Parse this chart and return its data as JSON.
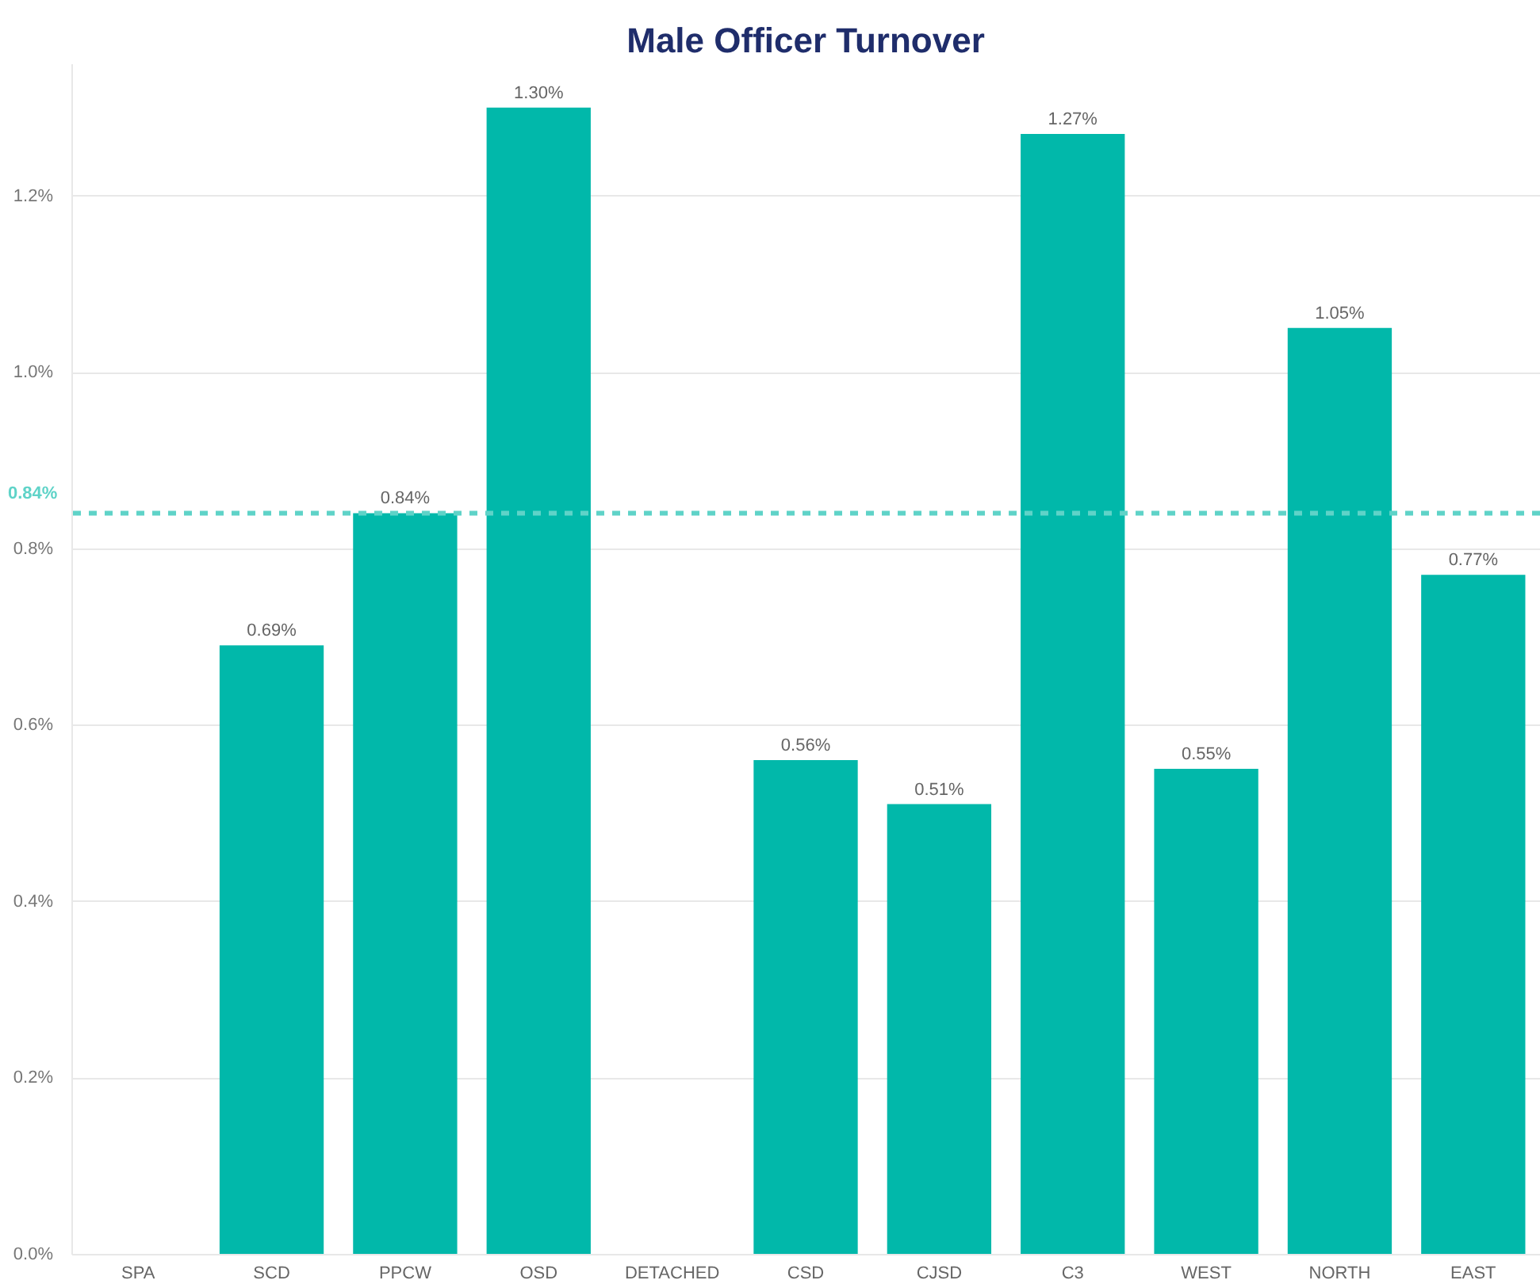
{
  "chart_data": {
    "type": "bar",
    "title": "Male Officer Turnover",
    "categories": [
      "SPA",
      "SCD",
      "PPCW",
      "OSD",
      "DETACHED",
      "CSD",
      "CJSD",
      "C3",
      "WEST",
      "NORTH",
      "EAST"
    ],
    "values": [
      null,
      0.69,
      0.84,
      1.3,
      null,
      0.56,
      0.51,
      1.27,
      0.55,
      1.05,
      0.77
    ],
    "value_labels": [
      null,
      "0.69%",
      "0.84%",
      "1.30%",
      null,
      "0.56%",
      "0.51%",
      "1.27%",
      "0.55%",
      "1.05%",
      "0.77%"
    ],
    "color": "#01b8aa",
    "ylim": [
      0,
      1.35
    ],
    "yticks": [
      {
        "value": 0,
        "label": "0.0%"
      },
      {
        "value": 0.2,
        "label": "0.2%"
      },
      {
        "value": 0.4,
        "label": "0.4%"
      },
      {
        "value": 0.6,
        "label": "0.6%"
      },
      {
        "value": 0.8,
        "label": "0.8%"
      },
      {
        "value": 1.0,
        "label": "1.0%"
      },
      {
        "value": 1.2,
        "label": "1.2%"
      }
    ],
    "grid": "y",
    "ref_lines": [
      {
        "axis": "y",
        "value": 0.84,
        "label": "0.84%",
        "color": "#5fd3c8",
        "line_style": "dashed"
      }
    ]
  }
}
